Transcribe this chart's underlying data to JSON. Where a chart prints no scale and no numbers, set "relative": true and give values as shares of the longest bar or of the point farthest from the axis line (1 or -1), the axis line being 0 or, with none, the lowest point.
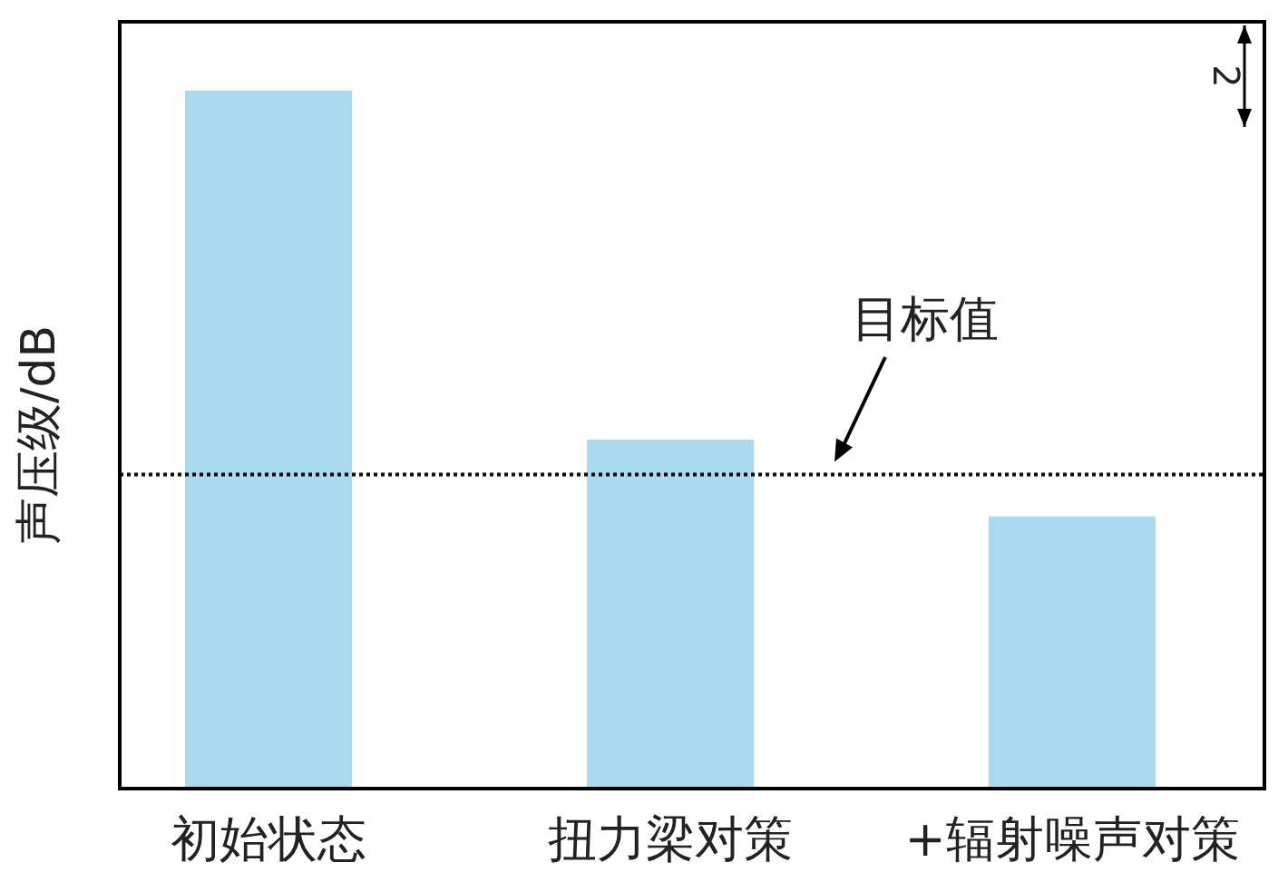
{
  "chart_data": {
    "type": "bar",
    "ylabel": "声压级/dB",
    "categories": [
      "初始状态",
      "扭力梁对策",
      "+辐射噪声对策"
    ],
    "values": [
      1,
      0.5,
      0.39
    ],
    "color": "#a8daf0",
    "relative": true,
    "ref_lines": [
      {
        "axis": "y",
        "value": 0.45,
        "label": "目标值",
        "color": "#000000",
        "line_style": "dotted"
      }
    ],
    "annotations": [
      "2"
    ]
  }
}
